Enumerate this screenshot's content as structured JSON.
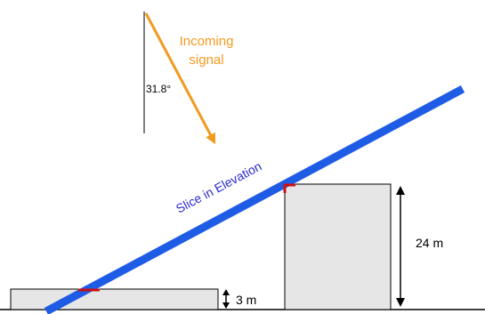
{
  "signal": {
    "label_line1": "Incoming",
    "label_line2": "signal",
    "angle_label": "31.8°",
    "color": "#f29a1f"
  },
  "slice": {
    "label": "Slice in Elevation",
    "color": "#1f5ce6",
    "label_color": "#2a2ad0"
  },
  "small_building": {
    "height_label": "3 m",
    "fill": "#e6e6e6"
  },
  "tall_building": {
    "height_label": "24 m",
    "fill": "#e6e6e6"
  },
  "marker_color": "#cc1010"
}
